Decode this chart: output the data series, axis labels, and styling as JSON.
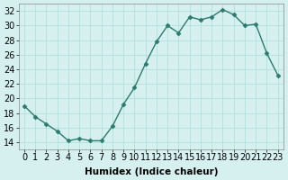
{
  "x": [
    0,
    1,
    2,
    3,
    4,
    5,
    6,
    7,
    8,
    9,
    10,
    11,
    12,
    13,
    14,
    15,
    16,
    17,
    18,
    19,
    20,
    21,
    22,
    23
  ],
  "y": [
    19,
    17.5,
    16.5,
    15.5,
    14.2,
    14.5,
    14.2,
    14.2,
    16.2,
    19.2,
    21.5,
    24.8,
    27.8,
    30.0,
    29.0,
    31.2,
    30.8,
    31.2,
    32.2,
    31.5,
    30.0,
    30.2,
    26.2,
    23.2
  ],
  "line_color": "#2d7a6e",
  "marker_color": "#2d7a6e",
  "bg_color": "#d6f0f0",
  "grid_color": "#aadddd",
  "xlabel": "Humidex (Indice chaleur)",
  "ylim": [
    13,
    33
  ],
  "xlim": [
    -0.5,
    23.5
  ],
  "yticks": [
    14,
    16,
    18,
    20,
    22,
    24,
    26,
    28,
    30,
    32
  ],
  "xticks": [
    0,
    1,
    2,
    3,
    4,
    5,
    6,
    7,
    8,
    9,
    10,
    11,
    12,
    13,
    14,
    15,
    16,
    17,
    18,
    19,
    20,
    21,
    22,
    23
  ],
  "xlabel_fontsize": 7.5,
  "tick_fontsize": 7
}
